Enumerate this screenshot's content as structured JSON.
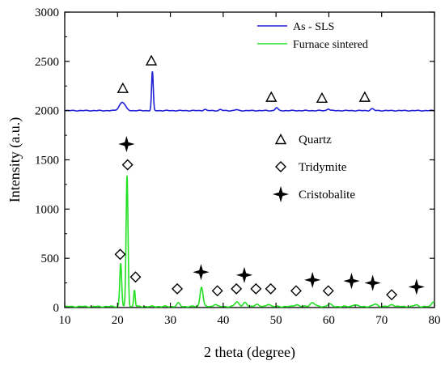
{
  "chart_data": {
    "type": "line",
    "xlabel": "2 theta (degree)",
    "ylabel": "Intensity (a.u.)",
    "xlim": [
      10,
      80
    ],
    "ylim": [
      0,
      3000
    ],
    "xticks": [
      10,
      20,
      30,
      40,
      50,
      60,
      70,
      80
    ],
    "yticks": [
      0,
      500,
      1000,
      1500,
      2000,
      2500,
      3000
    ],
    "grid": false,
    "legend_position": "top-right",
    "series": [
      {
        "name": "As - SLS",
        "color": "#1f1fd6",
        "baseline": 2000,
        "peaks": [
          {
            "x": 20.9,
            "height": 85,
            "width": 0.55
          },
          {
            "x": 26.6,
            "height": 395,
            "width": 0.16
          },
          {
            "x": 36.5,
            "height": 12,
            "width": 0.25
          },
          {
            "x": 39.5,
            "height": 10,
            "width": 0.25
          },
          {
            "x": 42.5,
            "height": 10,
            "width": 0.25
          },
          {
            "x": 50.1,
            "height": 30,
            "width": 0.25
          },
          {
            "x": 59.9,
            "height": 18,
            "width": 0.25
          },
          {
            "x": 68.2,
            "height": 18,
            "width": 0.3
          }
        ]
      },
      {
        "name": "Furnace sintered",
        "color": "#22e022",
        "baseline": 10,
        "peaks": [
          {
            "x": 20.6,
            "height": 440,
            "width": 0.18
          },
          {
            "x": 21.8,
            "height": 1330,
            "width": 0.18
          },
          {
            "x": 23.2,
            "height": 170,
            "width": 0.14
          },
          {
            "x": 31.5,
            "height": 35,
            "width": 0.3
          },
          {
            "x": 35.9,
            "height": 200,
            "width": 0.28
          },
          {
            "x": 38.5,
            "height": 25,
            "width": 0.3
          },
          {
            "x": 42.6,
            "height": 45,
            "width": 0.4
          },
          {
            "x": 44.1,
            "height": 40,
            "width": 0.35
          },
          {
            "x": 46.3,
            "height": 25,
            "width": 0.35
          },
          {
            "x": 48.6,
            "height": 25,
            "width": 0.35
          },
          {
            "x": 53.9,
            "height": 20,
            "width": 0.4
          },
          {
            "x": 56.9,
            "height": 40,
            "width": 0.45
          },
          {
            "x": 60.1,
            "height": 25,
            "width": 0.4
          },
          {
            "x": 64.9,
            "height": 20,
            "width": 0.4
          },
          {
            "x": 68.8,
            "height": 25,
            "width": 0.4
          },
          {
            "x": 72.0,
            "height": 20,
            "width": 0.4
          },
          {
            "x": 76.5,
            "height": 15,
            "width": 0.4
          },
          {
            "x": 79.8,
            "height": 50,
            "width": 0.3
          }
        ]
      }
    ],
    "markers": [
      {
        "phase": "quartz",
        "x": 21.0,
        "y": 2230
      },
      {
        "phase": "quartz",
        "x": 26.4,
        "y": 2510
      },
      {
        "phase": "quartz",
        "x": 49.1,
        "y": 2140
      },
      {
        "phase": "quartz",
        "x": 58.7,
        "y": 2130
      },
      {
        "phase": "quartz",
        "x": 66.8,
        "y": 2140
      },
      {
        "phase": "tridymite",
        "x": 20.5,
        "y": 540
      },
      {
        "phase": "tridymite",
        "x": 21.9,
        "y": 1450
      },
      {
        "phase": "tridymite",
        "x": 23.4,
        "y": 310
      },
      {
        "phase": "tridymite",
        "x": 31.3,
        "y": 190
      },
      {
        "phase": "tridymite",
        "x": 38.9,
        "y": 170
      },
      {
        "phase": "tridymite",
        "x": 42.5,
        "y": 190
      },
      {
        "phase": "tridymite",
        "x": 46.2,
        "y": 190
      },
      {
        "phase": "tridymite",
        "x": 49.0,
        "y": 190
      },
      {
        "phase": "tridymite",
        "x": 53.8,
        "y": 170
      },
      {
        "phase": "tridymite",
        "x": 59.9,
        "y": 170
      },
      {
        "phase": "tridymite",
        "x": 71.9,
        "y": 130
      },
      {
        "phase": "cristobalite",
        "x": 21.7,
        "y": 1660
      },
      {
        "phase": "cristobalite",
        "x": 35.8,
        "y": 360
      },
      {
        "phase": "cristobalite",
        "x": 44.0,
        "y": 330
      },
      {
        "phase": "cristobalite",
        "x": 56.9,
        "y": 280
      },
      {
        "phase": "cristobalite",
        "x": 64.3,
        "y": 270
      },
      {
        "phase": "cristobalite",
        "x": 68.3,
        "y": 250
      },
      {
        "phase": "cristobalite",
        "x": 76.6,
        "y": 210
      }
    ],
    "phase_legend": [
      {
        "phase": "quartz",
        "label": "Quartz"
      },
      {
        "phase": "tridymite",
        "label": "Tridymite"
      },
      {
        "phase": "cristobalite",
        "label": "Cristobalite"
      }
    ]
  }
}
